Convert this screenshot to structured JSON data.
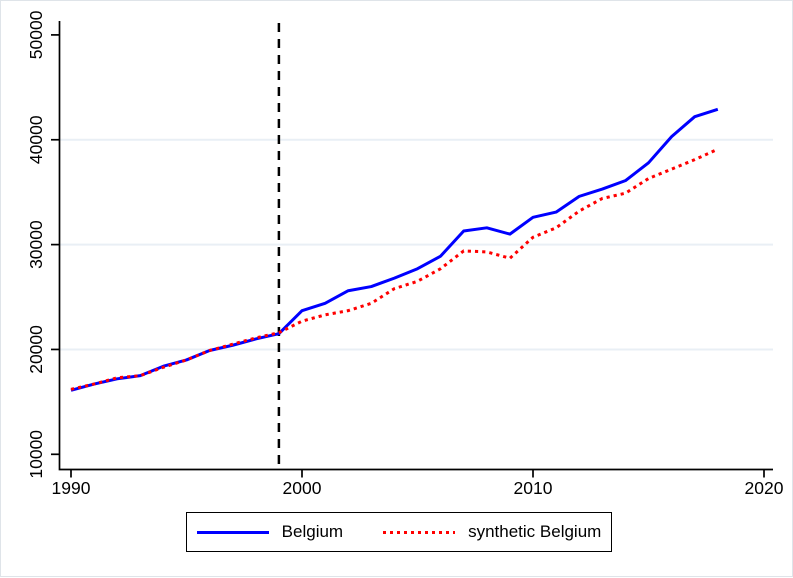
{
  "window": {
    "background": "#ffffff",
    "border_color": "#dfe4e9"
  },
  "chart_data": {
    "type": "line",
    "title": "",
    "xlabel": "",
    "ylabel": "",
    "x_ticks": [
      1990,
      2000,
      2010,
      2020
    ],
    "y_ticks": [
      10000,
      20000,
      30000,
      40000,
      50000
    ],
    "grid_y": [
      20000,
      30000,
      40000
    ],
    "xlim": [
      1989.5,
      2020.4
    ],
    "ylim": [
      9800,
      51300
    ],
    "grid_color": "#e9eff5",
    "axis_color": "#000000",
    "years": [
      1990,
      1991,
      1992,
      1993,
      1994,
      1995,
      1996,
      1997,
      1998,
      1999,
      2000,
      2001,
      2002,
      2003,
      2004,
      2005,
      2006,
      2007,
      2008,
      2009,
      2010,
      2011,
      2012,
      2013,
      2014,
      2015,
      2016,
      2017,
      2018
    ],
    "series": [
      {
        "name": "Belgium",
        "color": "#0000ff",
        "style": "solid",
        "values": [
          16100,
          16700,
          17200,
          17500,
          18400,
          19000,
          19900,
          20400,
          21000,
          21500,
          23700,
          24400,
          25600,
          26000,
          26800,
          27700,
          28900,
          31300,
          31600,
          31000,
          32600,
          33100,
          34600,
          35300,
          36100,
          37800,
          40300,
          42200,
          42900
        ]
      },
      {
        "name": "synthetic Belgium",
        "color": "#ff0000",
        "style": "dotted",
        "values": [
          16200,
          16700,
          17300,
          17500,
          18300,
          19000,
          19900,
          20500,
          21100,
          21600,
          22700,
          23300,
          23700,
          24400,
          25800,
          26500,
          27700,
          29400,
          29300,
          28700,
          30700,
          31600,
          33200,
          34400,
          34900,
          36300,
          37200,
          38100,
          39100
        ]
      }
    ],
    "vline": {
      "x": 1999,
      "style": "dashed",
      "color": "#000000"
    },
    "legend": {
      "position": "bottom-center"
    }
  }
}
